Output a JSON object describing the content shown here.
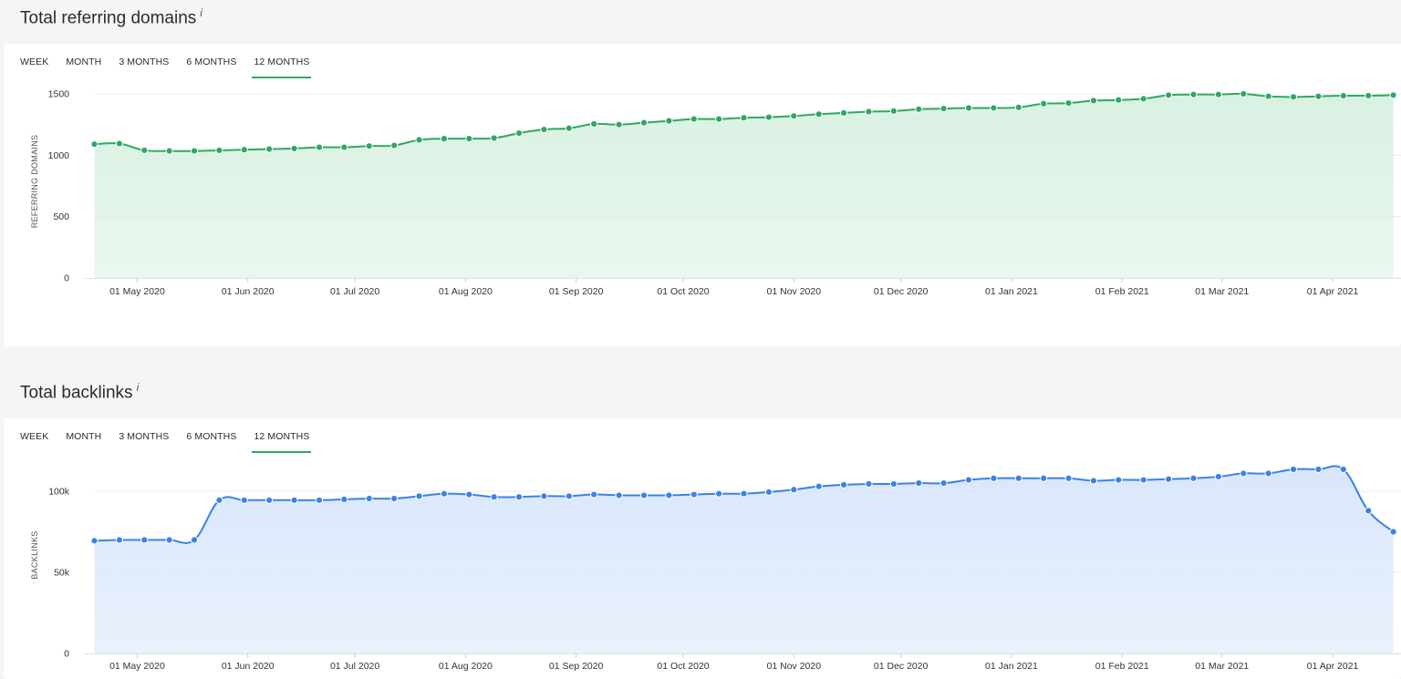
{
  "sections": [
    {
      "title": "Total referring domains",
      "info_icon": "info-icon",
      "tabs": [
        "WEEK",
        "MONTH",
        "3 MONTHS",
        "6 MONTHS",
        "12 MONTHS"
      ],
      "active_tab": 4
    },
    {
      "title": "Total backlinks",
      "info_icon": "info-icon",
      "tabs": [
        "WEEK",
        "MONTH",
        "3 MONTHS",
        "6 MONTHS",
        "12 MONTHS"
      ],
      "active_tab": 4
    }
  ],
  "chart_data": [
    {
      "type": "area",
      "title": "Total referring domains",
      "ylabel": "REFERRING DOMAINS",
      "xlabel": "",
      "color": "#2fa863",
      "fill": "#d8f1e2",
      "ylim": [
        0,
        1500
      ],
      "yticks": [
        0,
        500,
        1000,
        1500
      ],
      "ytick_labels": [
        "0",
        "500",
        "1000",
        "1500"
      ],
      "x_range": [
        "2020-04-19",
        "2021-04-19"
      ],
      "xtick_dates": [
        "2020-05-01",
        "2020-06-01",
        "2020-07-01",
        "2020-08-01",
        "2020-09-01",
        "2020-10-01",
        "2020-11-01",
        "2020-12-01",
        "2021-01-01",
        "2021-02-01",
        "2021-03-01",
        "2021-04-01"
      ],
      "xtick_labels": [
        "01 May 2020",
        "01 Jun 2020",
        "01 Jul 2020",
        "01 Aug 2020",
        "01 Sep 2020",
        "01 Oct 2020",
        "01 Nov 2020",
        "01 Dec 2020",
        "01 Jan 2021",
        "01 Feb 2021",
        "01 Mar 2021",
        "01 Apr 2021"
      ],
      "grid": true,
      "legend": "none",
      "start_date": "2020-04-19",
      "interval_days": 7,
      "values": [
        1090,
        1095,
        1040,
        1035,
        1035,
        1040,
        1045,
        1050,
        1055,
        1065,
        1065,
        1075,
        1080,
        1125,
        1135,
        1135,
        1140,
        1180,
        1210,
        1220,
        1255,
        1250,
        1265,
        1280,
        1295,
        1295,
        1305,
        1310,
        1320,
        1335,
        1345,
        1355,
        1360,
        1375,
        1380,
        1385,
        1385,
        1390,
        1420,
        1425,
        1445,
        1450,
        1460,
        1490,
        1495,
        1495,
        1500,
        1480,
        1475,
        1480,
        1485,
        1485,
        1490
      ]
    },
    {
      "type": "area",
      "title": "Total backlinks",
      "ylabel": "BACKLINKS",
      "xlabel": "",
      "color": "#3b82e6",
      "fill": "#d9e6fb",
      "ylim": [
        0,
        100000
      ],
      "yticks": [
        0,
        50000,
        100000
      ],
      "ytick_labels": [
        "0",
        "50k",
        "100k"
      ],
      "x_range": [
        "2020-04-19",
        "2021-04-19"
      ],
      "xtick_dates": [
        "2020-05-01",
        "2020-06-01",
        "2020-07-01",
        "2020-08-01",
        "2020-09-01",
        "2020-10-01",
        "2020-11-01",
        "2020-12-01",
        "2021-01-01",
        "2021-02-01",
        "2021-03-01",
        "2021-04-01"
      ],
      "xtick_labels": [
        "01 May 2020",
        "01 Jun 2020",
        "01 Jul 2020",
        "01 Aug 2020",
        "01 Sep 2020",
        "01 Oct 2020",
        "01 Nov 2020",
        "01 Dec 2020",
        "01 Jan 2021",
        "01 Feb 2021",
        "01 Mar 2021",
        "01 Apr 2021"
      ],
      "grid": true,
      "legend": "none",
      "start_date": "2020-04-19",
      "interval_days": 7,
      "values": [
        69500,
        70000,
        70000,
        70000,
        70000,
        94500,
        94500,
        94500,
        94500,
        94500,
        95000,
        95500,
        95500,
        97000,
        98500,
        98000,
        96500,
        96500,
        97000,
        97000,
        98000,
        97500,
        97500,
        97500,
        98000,
        98500,
        98500,
        99500,
        101000,
        103000,
        104000,
        104500,
        104500,
        105000,
        105000,
        107000,
        108000,
        108000,
        108000,
        108000,
        106500,
        107000,
        107000,
        107500,
        108000,
        109000,
        111000,
        111000,
        113500,
        113500,
        113500,
        88000,
        75000
      ]
    }
  ]
}
